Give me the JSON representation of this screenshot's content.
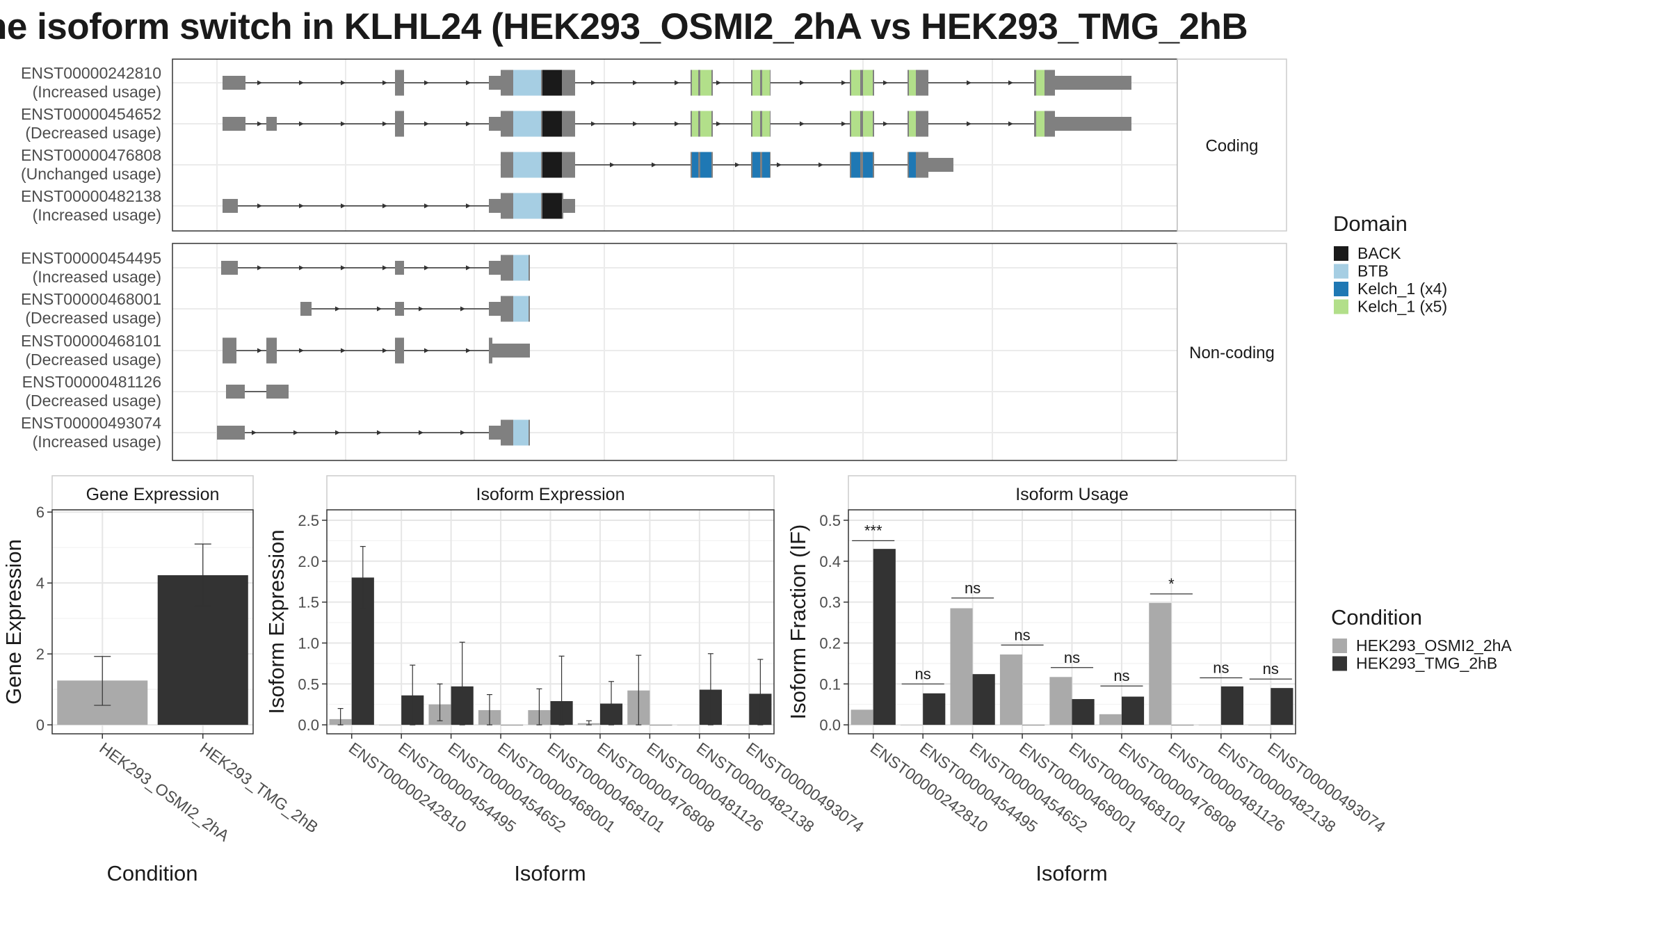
{
  "title": "he isoform switch in KLHL24 (HEK293_OSMI2_2hA vs HEK293_TMG_2hB",
  "colors": {
    "exon": "#808080",
    "BACK": "#1a1a1a",
    "BTB": "#a6cee3",
    "Kelch_1 (x4)": "#1f78b4",
    "Kelch_1 (x5)": "#b2df8a",
    "cond1": "#aaaaaa",
    "cond2": "#333333"
  },
  "transcript_panel": {
    "groups": [
      {
        "label": "Coding",
        "transcripts": [
          {
            "id": "ENST00000242810",
            "usage": "(Increased usage)"
          },
          {
            "id": "ENST00000454652",
            "usage": "(Decreased usage)"
          },
          {
            "id": "ENST00000476808",
            "usage": "(Unchanged usage)"
          },
          {
            "id": "ENST00000482138",
            "usage": "(Increased usage)"
          }
        ]
      },
      {
        "label": "Non-coding",
        "transcripts": [
          {
            "id": "ENST00000454495",
            "usage": "(Increased usage)"
          },
          {
            "id": "ENST00000468001",
            "usage": "(Decreased usage)"
          },
          {
            "id": "ENST00000468101",
            "usage": "(Decreased usage)"
          },
          {
            "id": "ENST00000481126",
            "usage": "(Decreased usage)"
          },
          {
            "id": "ENST00000493074",
            "usage": "(Increased usage)"
          }
        ]
      }
    ],
    "domain_legend": {
      "title": "Domain",
      "items": [
        "BACK",
        "BTB",
        "Kelch_1 (x4)",
        "Kelch_1 (x5)"
      ]
    }
  },
  "chart_data": [
    {
      "type": "bar",
      "title": "Gene Expression",
      "xlabel": "Condition",
      "ylabel": "Gene Expression",
      "categories": [
        "HEK293_OSMI2_2hA",
        "HEK293_TMG_2hB"
      ],
      "values": [
        1.25,
        4.22
      ],
      "error_low": [
        0.55,
        3.35
      ],
      "error_high": [
        1.93,
        5.1
      ],
      "ylim": [
        0,
        6
      ],
      "yticks": [
        "0",
        "2",
        "4",
        "6"
      ],
      "grid": true
    },
    {
      "type": "bar",
      "title": "Isoform Expression",
      "xlabel": "Isoform",
      "ylabel": "Isoform Expression",
      "categories": [
        "ENST00000242810",
        "ENST00000454495",
        "ENST00000454652",
        "ENST00000468001",
        "ENST00000468101",
        "ENST00000476808",
        "ENST00000481126",
        "ENST00000482138",
        "ENST00000493074"
      ],
      "ylim": [
        0,
        2.6
      ],
      "yticks": [
        "0.0",
        "0.5",
        "1.0",
        "1.5",
        "2.0",
        "2.5"
      ],
      "grid": true,
      "series": [
        {
          "name": "HEK293_OSMI2_2hA",
          "values": [
            0.07,
            0.0,
            0.25,
            0.18,
            0.18,
            0.02,
            0.42,
            0.0,
            0.0
          ],
          "error_low": [
            0.0,
            0.0,
            0.05,
            0.0,
            0.0,
            0.0,
            0.0,
            0.0,
            0.0
          ],
          "error_high": [
            0.2,
            0.0,
            0.5,
            0.37,
            0.44,
            0.05,
            0.85,
            0.0,
            0.0
          ]
        },
        {
          "name": "HEK293_TMG_2hB",
          "values": [
            1.8,
            0.36,
            0.47,
            0.0,
            0.29,
            0.26,
            0.0,
            0.43,
            0.38
          ],
          "error_low": [
            1.42,
            0.0,
            0.0,
            0.0,
            0.0,
            0.0,
            0.0,
            0.0,
            0.0
          ],
          "error_high": [
            2.18,
            0.73,
            1.01,
            0.0,
            0.84,
            0.53,
            0.0,
            0.87,
            0.8
          ]
        }
      ]
    },
    {
      "type": "bar",
      "title": "Isoform Usage",
      "xlabel": "Isoform",
      "ylabel": "Isoform Fraction (IF)",
      "categories": [
        "ENST00000242810",
        "ENST00000454495",
        "ENST00000454652",
        "ENST00000468001",
        "ENST00000468101",
        "ENST00000476808",
        "ENST00000481126",
        "ENST00000482138",
        "ENST00000493074"
      ],
      "ylim": [
        0,
        0.52
      ],
      "yticks": [
        "0.0",
        "0.1",
        "0.2",
        "0.3",
        "0.4",
        "0.5"
      ],
      "grid": true,
      "series": [
        {
          "name": "HEK293_OSMI2_2hA",
          "values": [
            0.037,
            0.0,
            0.285,
            0.172,
            0.117,
            0.026,
            0.298,
            0.0,
            0.0
          ]
        },
        {
          "name": "HEK293_TMG_2hB",
          "values": [
            0.43,
            0.077,
            0.124,
            0.0,
            0.063,
            0.069,
            0.0,
            0.094,
            0.09
          ]
        }
      ],
      "significance": [
        "***",
        "ns",
        "ns",
        "ns",
        "ns",
        "ns",
        "*",
        "ns",
        "ns"
      ],
      "significance_y": [
        0.45,
        0.1,
        0.31,
        0.195,
        0.14,
        0.095,
        0.32,
        0.115,
        0.112
      ]
    }
  ],
  "condition_legend": {
    "title": "Condition",
    "items": [
      "HEK293_OSMI2_2hA",
      "HEK293_TMG_2hB"
    ]
  }
}
